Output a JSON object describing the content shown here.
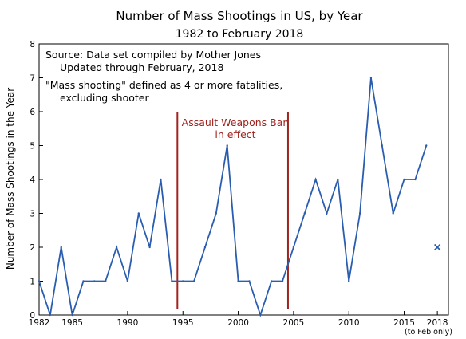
{
  "chart_data": {
    "type": "line",
    "title": "Number of Mass Shootings in US, by Year",
    "subtitle": "1982 to February 2018",
    "ylabel": "Number of Mass Shootings in the Year",
    "xlim": [
      1982,
      2019
    ],
    "ylim": [
      0,
      8
    ],
    "x_ticks": [
      1982,
      1985,
      1990,
      1995,
      2000,
      2005,
      2010,
      2015,
      2018
    ],
    "y_ticks": [
      0,
      1,
      2,
      3,
      4,
      5,
      6,
      7,
      8
    ],
    "x_tick_note": "(to Feb only)",
    "series": [
      {
        "color": "#2a5db0",
        "x": [
          1982,
          1983,
          1984,
          1985,
          1986,
          1987,
          1988,
          1989,
          1990,
          1991,
          1992,
          1993,
          1994,
          1995,
          1996,
          1997,
          1998,
          1999,
          2000,
          2001,
          2002,
          2003,
          2004,
          2005,
          2006,
          2007,
          2008,
          2009,
          2010,
          2011,
          2012,
          2013,
          2014,
          2015,
          2016,
          2017
        ],
        "y": [
          1,
          0,
          2,
          0,
          1,
          1,
          1,
          2,
          1,
          3,
          2,
          4,
          1,
          1,
          1,
          2,
          3,
          5,
          1,
          1,
          0,
          1,
          1,
          2,
          3,
          4,
          3,
          4,
          1,
          3,
          7,
          5,
          3,
          4,
          4,
          5
        ]
      }
    ],
    "extra_point": {
      "x": 2018,
      "y": 2,
      "marker": "x",
      "color": "#2a5db0"
    },
    "notes": [
      "Source:  Data set compiled by Mother Jones",
      "Updated through February, 2018",
      "\"Mass shooting\" defined as 4 or more fatalities,",
      "excluding shooter"
    ],
    "vlines": [
      {
        "x": 1994.5,
        "color": "#a0231e"
      },
      {
        "x": 2004.5,
        "color": "#a0231e"
      }
    ],
    "annotation": {
      "lines": [
        "Assault Weapons Ban",
        "in effect"
      ],
      "color": "#a0231e"
    },
    "grid": false
  }
}
